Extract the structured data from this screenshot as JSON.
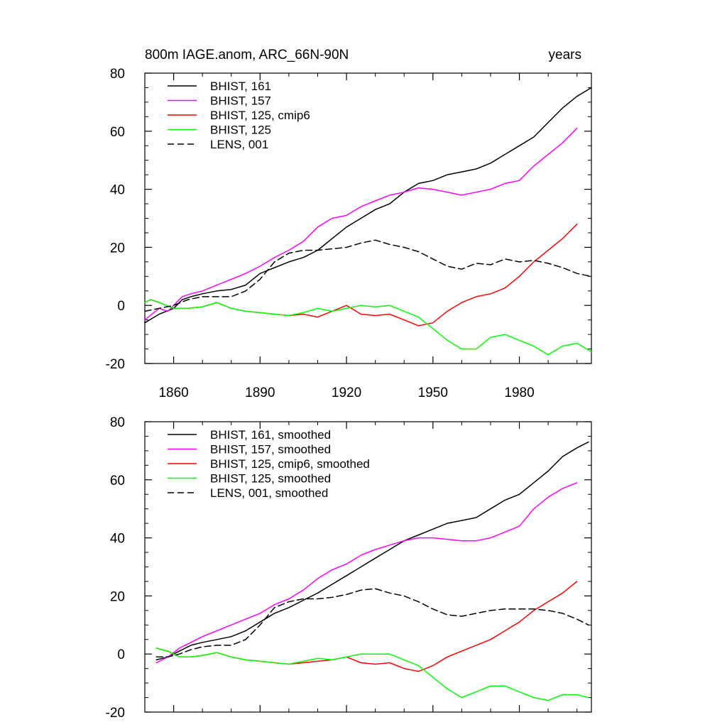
{
  "figure": {
    "title_left": "800m IAGE.anom, ARC_66N-90N",
    "title_right": "years"
  },
  "colors": {
    "black": "#000000",
    "magenta": "#ff00ff",
    "red": "#ff0000",
    "green": "#00ff00"
  },
  "chart_data": [
    {
      "type": "line",
      "panel": "top",
      "xlim": [
        1850,
        2005
      ],
      "ylim": [
        -20,
        80
      ],
      "yticks": [
        -20,
        0,
        20,
        40,
        60,
        80
      ],
      "xticks": [
        1860,
        1890,
        1920,
        1950,
        1980
      ],
      "xtick_labels": [
        "1860",
        "1890",
        "1920",
        "1950",
        "1980"
      ],
      "legend_position": "top-left",
      "series": [
        {
          "name": "BHIST, 161",
          "color": "#000000",
          "dash": "",
          "x": [
            1850,
            1855,
            1860,
            1863,
            1866,
            1870,
            1875,
            1880,
            1885,
            1890,
            1895,
            1900,
            1905,
            1910,
            1915,
            1920,
            1925,
            1930,
            1935,
            1940,
            1945,
            1950,
            1955,
            1960,
            1965,
            1970,
            1975,
            1980,
            1985,
            1990,
            1995,
            2000,
            2005
          ],
          "y": [
            -6,
            -3,
            -1,
            2,
            3,
            4,
            5,
            5.5,
            7,
            11,
            13,
            15,
            16.5,
            19,
            23,
            27,
            30,
            33,
            35,
            39,
            42,
            43,
            45,
            46,
            47,
            49,
            52,
            55,
            58,
            63,
            68,
            72,
            75
          ]
        },
        {
          "name": "BHIST, 157",
          "color": "#ff00ff",
          "dash": "",
          "x": [
            1850,
            1855,
            1858,
            1860,
            1863,
            1866,
            1870,
            1875,
            1880,
            1885,
            1890,
            1895,
            1900,
            1905,
            1910,
            1915,
            1920,
            1925,
            1930,
            1935,
            1940,
            1945,
            1950,
            1955,
            1960,
            1965,
            1970,
            1975,
            1980,
            1985,
            1990,
            1995,
            2000
          ],
          "y": [
            -5,
            -1,
            -2,
            0,
            3,
            4,
            5,
            7,
            9,
            11,
            13.5,
            16.5,
            19,
            22,
            27,
            30,
            31,
            34,
            36,
            38,
            39,
            40.5,
            40,
            39,
            38,
            39,
            40,
            42,
            43,
            48,
            52,
            56,
            61
          ]
        },
        {
          "name": "BHIST, 125, cmip6",
          "color": "#ff0000",
          "dash": "",
          "x": [
            1850,
            1852,
            1855,
            1860,
            1865,
            1870,
            1875,
            1880,
            1885,
            1890,
            1895,
            1900,
            1905,
            1910,
            1915,
            1920,
            1925,
            1930,
            1935,
            1940,
            1945,
            1950,
            1955,
            1960,
            1965,
            1970,
            1975,
            1980,
            1985,
            1990,
            1995,
            2000
          ],
          "y": [
            1,
            2,
            1,
            -1,
            -1,
            -0.5,
            1,
            -1,
            -2,
            -2.5,
            -3,
            -3.5,
            -3,
            -4,
            -2,
            0,
            -3,
            -3.5,
            -3,
            -5,
            -7,
            -6,
            -2,
            1,
            3,
            4,
            6,
            10,
            15,
            19,
            23,
            28
          ]
        },
        {
          "name": "BHIST, 125",
          "color": "#00ff00",
          "dash": "",
          "x": [
            1850,
            1852,
            1855,
            1860,
            1865,
            1870,
            1875,
            1880,
            1885,
            1890,
            1895,
            1900,
            1905,
            1910,
            1915,
            1920,
            1925,
            1930,
            1935,
            1940,
            1945,
            1950,
            1955,
            1960,
            1965,
            1970,
            1975,
            1980,
            1985,
            1990,
            1995,
            2000,
            2005
          ],
          "y": [
            1,
            2,
            1,
            -1,
            -1,
            -0.5,
            1,
            -1,
            -2,
            -2.5,
            -3,
            -3.5,
            -2.5,
            -1,
            -2,
            -1,
            0,
            -0.5,
            0,
            -2,
            -4,
            -8,
            -12,
            -15,
            -15,
            -11,
            -10,
            -12,
            -14,
            -17,
            -14,
            -13,
            -16
          ]
        },
        {
          "name": "LENS, 001",
          "color": "#000000",
          "dash": "9,5",
          "x": [
            1850,
            1855,
            1860,
            1865,
            1870,
            1875,
            1880,
            1885,
            1890,
            1895,
            1900,
            1905,
            1910,
            1915,
            1920,
            1925,
            1930,
            1935,
            1940,
            1945,
            1950,
            1955,
            1960,
            1965,
            1970,
            1975,
            1980,
            1985,
            1990,
            1995,
            2000,
            2005
          ],
          "y": [
            -2,
            -1,
            0,
            2,
            3,
            3,
            3,
            5,
            9,
            15,
            18,
            19,
            19,
            19.5,
            20,
            21.5,
            22.5,
            21,
            20,
            18.5,
            16,
            13.5,
            12.5,
            14.5,
            14,
            16,
            15,
            15.5,
            14.5,
            13,
            11,
            10
          ]
        }
      ]
    },
    {
      "type": "line",
      "panel": "bottom",
      "xlim": [
        1850,
        2005
      ],
      "ylim": [
        -20,
        80
      ],
      "yticks": [
        -20,
        0,
        20,
        40,
        60,
        80
      ],
      "xticks": [
        1860,
        1890,
        1920,
        1950,
        1980
      ],
      "xtick_labels": [],
      "legend_position": "top-left",
      "series": [
        {
          "name": "BHIST, 161, smoothed",
          "color": "#000000",
          "dash": "",
          "x": [
            1854,
            1858,
            1862,
            1866,
            1870,
            1875,
            1880,
            1885,
            1890,
            1895,
            1900,
            1905,
            1910,
            1915,
            1920,
            1925,
            1930,
            1935,
            1940,
            1945,
            1950,
            1955,
            1960,
            1965,
            1970,
            1975,
            1980,
            1985,
            1990,
            1995,
            2000,
            2004
          ],
          "y": [
            -2,
            -1,
            1,
            3,
            4,
            5,
            6,
            8,
            11,
            14,
            16,
            18.5,
            21,
            24,
            27,
            30,
            33,
            36,
            39,
            41,
            43,
            45,
            46,
            47,
            50,
            53,
            55,
            59,
            63,
            68,
            71,
            73
          ]
        },
        {
          "name": "BHIST, 157, smoothed",
          "color": "#ff00ff",
          "dash": "",
          "x": [
            1854,
            1858,
            1862,
            1866,
            1870,
            1875,
            1880,
            1885,
            1890,
            1895,
            1900,
            1905,
            1910,
            1915,
            1920,
            1925,
            1930,
            1935,
            1940,
            1945,
            1950,
            1955,
            1960,
            1965,
            1970,
            1975,
            1980,
            1985,
            1990,
            1995,
            2000
          ],
          "y": [
            -3,
            -1,
            2,
            4,
            6,
            8,
            10,
            12,
            14,
            17,
            19,
            22,
            26,
            29,
            31,
            34,
            36,
            37.5,
            39,
            40,
            40,
            39.5,
            39,
            39,
            40,
            42,
            44,
            50,
            54,
            57,
            59
          ]
        },
        {
          "name": "BHIST, 125, cmip6, smoothed",
          "color": "#ff0000",
          "dash": "",
          "x": [
            1854,
            1858,
            1862,
            1866,
            1870,
            1875,
            1880,
            1885,
            1890,
            1895,
            1900,
            1905,
            1910,
            1915,
            1920,
            1925,
            1930,
            1935,
            1940,
            1945,
            1950,
            1955,
            1960,
            1965,
            1970,
            1975,
            1980,
            1985,
            1990,
            1995,
            2000
          ],
          "y": [
            2,
            1,
            -1,
            -1,
            -0.5,
            0.5,
            -1,
            -2,
            -2.5,
            -3,
            -3.5,
            -3,
            -2.5,
            -2,
            -1,
            -3,
            -3.5,
            -3,
            -5,
            -6,
            -4,
            -1,
            1,
            3,
            5,
            8,
            11,
            15,
            18,
            21,
            25
          ]
        },
        {
          "name": "BHIST, 125, smoothed",
          "color": "#00ff00",
          "dash": "",
          "x": [
            1854,
            1858,
            1862,
            1866,
            1870,
            1875,
            1880,
            1885,
            1890,
            1895,
            1900,
            1905,
            1910,
            1915,
            1920,
            1925,
            1930,
            1935,
            1940,
            1945,
            1950,
            1955,
            1960,
            1965,
            1970,
            1975,
            1980,
            1985,
            1990,
            1995,
            2000,
            2004
          ],
          "y": [
            2,
            1,
            -1,
            -1,
            -0.5,
            0.5,
            -1,
            -2,
            -2.5,
            -3,
            -3.5,
            -2.5,
            -1.5,
            -2,
            -1,
            0,
            0,
            0,
            -2,
            -4,
            -8,
            -12,
            -15,
            -13,
            -11,
            -11,
            -13,
            -15,
            -16,
            -14,
            -14,
            -15
          ]
        },
        {
          "name": "LENS, 001, smoothed",
          "color": "#000000",
          "dash": "9,5",
          "x": [
            1854,
            1858,
            1862,
            1866,
            1870,
            1875,
            1880,
            1885,
            1890,
            1895,
            1900,
            1905,
            1910,
            1915,
            1920,
            1925,
            1930,
            1935,
            1940,
            1945,
            1950,
            1955,
            1960,
            1965,
            1970,
            1975,
            1980,
            1985,
            1990,
            1995,
            2000,
            2004
          ],
          "y": [
            -1,
            -1,
            0,
            1.5,
            2.5,
            3,
            3,
            5,
            10,
            16,
            18,
            19,
            19,
            19.5,
            20.5,
            22,
            22.5,
            21,
            20,
            18,
            15.5,
            13.5,
            13,
            14,
            15,
            15.5,
            15.5,
            15.5,
            15,
            14,
            12,
            10
          ]
        }
      ]
    }
  ]
}
